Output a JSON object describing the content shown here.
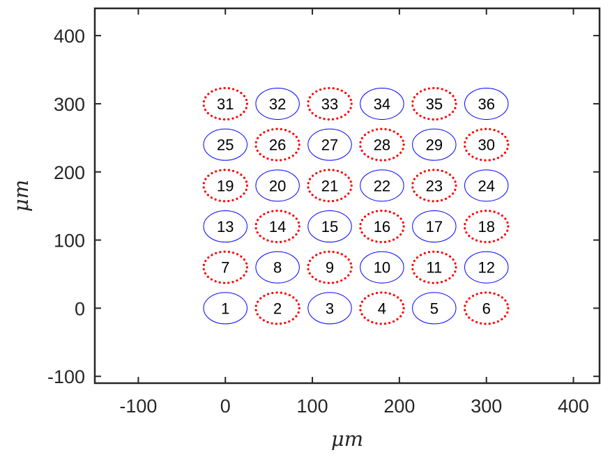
{
  "chart_data": {
    "type": "scatter",
    "xlabel": "μm",
    "ylabel": "μm",
    "xlim": [
      -150,
      430
    ],
    "ylim": [
      -110,
      440
    ],
    "xticks": [
      -100,
      0,
      100,
      200,
      300,
      400
    ],
    "yticks": [
      -100,
      0,
      100,
      200,
      300,
      400
    ],
    "marker_radius_x": 25,
    "marker_radius_y": 23,
    "styles": {
      "solid": {
        "color": "#0000ff",
        "dash": ""
      },
      "dotted": {
        "color": "#ff0000",
        "dash": "dot"
      }
    },
    "points": [
      {
        "id": "1",
        "x": 0,
        "y": 0,
        "style": "solid"
      },
      {
        "id": "2",
        "x": 60,
        "y": 0,
        "style": "dotted"
      },
      {
        "id": "3",
        "x": 120,
        "y": 0,
        "style": "solid"
      },
      {
        "id": "4",
        "x": 180,
        "y": 0,
        "style": "dotted"
      },
      {
        "id": "5",
        "x": 240,
        "y": 0,
        "style": "solid"
      },
      {
        "id": "6",
        "x": 300,
        "y": 0,
        "style": "dotted"
      },
      {
        "id": "7",
        "x": 0,
        "y": 60,
        "style": "dotted"
      },
      {
        "id": "8",
        "x": 60,
        "y": 60,
        "style": "solid"
      },
      {
        "id": "9",
        "x": 120,
        "y": 60,
        "style": "dotted"
      },
      {
        "id": "10",
        "x": 180,
        "y": 60,
        "style": "solid"
      },
      {
        "id": "11",
        "x": 240,
        "y": 60,
        "style": "dotted"
      },
      {
        "id": "12",
        "x": 300,
        "y": 60,
        "style": "solid"
      },
      {
        "id": "13",
        "x": 0,
        "y": 120,
        "style": "solid"
      },
      {
        "id": "14",
        "x": 60,
        "y": 120,
        "style": "dotted"
      },
      {
        "id": "15",
        "x": 120,
        "y": 120,
        "style": "solid"
      },
      {
        "id": "16",
        "x": 180,
        "y": 120,
        "style": "dotted"
      },
      {
        "id": "17",
        "x": 240,
        "y": 120,
        "style": "solid"
      },
      {
        "id": "18",
        "x": 300,
        "y": 120,
        "style": "dotted"
      },
      {
        "id": "19",
        "x": 0,
        "y": 180,
        "style": "dotted"
      },
      {
        "id": "20",
        "x": 60,
        "y": 180,
        "style": "solid"
      },
      {
        "id": "21",
        "x": 120,
        "y": 180,
        "style": "dotted"
      },
      {
        "id": "22",
        "x": 180,
        "y": 180,
        "style": "solid"
      },
      {
        "id": "23",
        "x": 240,
        "y": 180,
        "style": "dotted"
      },
      {
        "id": "24",
        "x": 300,
        "y": 180,
        "style": "solid"
      },
      {
        "id": "25",
        "x": 0,
        "y": 240,
        "style": "solid"
      },
      {
        "id": "26",
        "x": 60,
        "y": 240,
        "style": "dotted"
      },
      {
        "id": "27",
        "x": 120,
        "y": 240,
        "style": "solid"
      },
      {
        "id": "28",
        "x": 180,
        "y": 240,
        "style": "dotted"
      },
      {
        "id": "29",
        "x": 240,
        "y": 240,
        "style": "solid"
      },
      {
        "id": "30",
        "x": 300,
        "y": 240,
        "style": "dotted"
      },
      {
        "id": "31",
        "x": 0,
        "y": 300,
        "style": "dotted"
      },
      {
        "id": "32",
        "x": 60,
        "y": 300,
        "style": "solid"
      },
      {
        "id": "33",
        "x": 120,
        "y": 300,
        "style": "dotted"
      },
      {
        "id": "34",
        "x": 180,
        "y": 300,
        "style": "solid"
      },
      {
        "id": "35",
        "x": 240,
        "y": 300,
        "style": "dotted"
      },
      {
        "id": "36",
        "x": 300,
        "y": 300,
        "style": "solid"
      }
    ]
  }
}
